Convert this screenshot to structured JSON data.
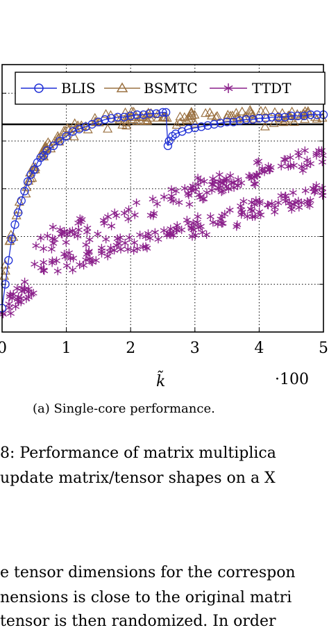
{
  "chart_data": {
    "type": "scatter",
    "xlabel": "k̃",
    "x_multiplier": "·100",
    "xlim": [
      0,
      5
    ],
    "ylim": [
      0,
      1.12
    ],
    "x_ticks": [
      "0",
      "1",
      "2",
      "3",
      "4",
      "5"
    ],
    "grid": true,
    "legend_position": "top",
    "reference_line_y": 0.87,
    "series": [
      {
        "name": "BLIS",
        "marker": "circle",
        "color": "#1f2fd6",
        "connected": true,
        "x": [
          0.0,
          0.05,
          0.1,
          0.15,
          0.2,
          0.25,
          0.3,
          0.35,
          0.4,
          0.45,
          0.5,
          0.55,
          0.6,
          0.65,
          0.7,
          0.8,
          0.9,
          1.0,
          1.1,
          1.2,
          1.3,
          1.4,
          1.5,
          1.6,
          1.7,
          1.8,
          1.9,
          2.0,
          2.1,
          2.2,
          2.3,
          2.4,
          2.5,
          2.55,
          2.58,
          2.6,
          2.65,
          2.7,
          2.8,
          2.9,
          3.0,
          3.1,
          3.2,
          3.3,
          3.4,
          3.5,
          3.6,
          3.7,
          3.8,
          3.9,
          4.0,
          4.1,
          4.2,
          4.3,
          4.4,
          4.5,
          4.6,
          4.7,
          4.8,
          4.9,
          5.0
        ],
        "y": [
          0.1,
          0.2,
          0.3,
          0.39,
          0.45,
          0.5,
          0.55,
          0.59,
          0.63,
          0.66,
          0.68,
          0.71,
          0.73,
          0.74,
          0.76,
          0.78,
          0.8,
          0.82,
          0.84,
          0.85,
          0.86,
          0.87,
          0.88,
          0.89,
          0.895,
          0.9,
          0.9,
          0.905,
          0.91,
          0.91,
          0.915,
          0.915,
          0.92,
          0.92,
          0.78,
          0.8,
          0.82,
          0.83,
          0.84,
          0.85,
          0.855,
          0.86,
          0.865,
          0.87,
          0.875,
          0.88,
          0.88,
          0.885,
          0.89,
          0.89,
          0.895,
          0.895,
          0.9,
          0.9,
          0.9,
          0.905,
          0.905,
          0.905,
          0.91,
          0.91,
          0.91
        ]
      },
      {
        "name": "BSMTC",
        "marker": "triangle",
        "color": "#9a7040",
        "connected": false,
        "points_estimated": 150
      },
      {
        "name": "TTDT",
        "marker": "star",
        "color": "#8a1f8a",
        "connected": false,
        "points_estimated": 300
      }
    ]
  },
  "caption": "(a) Single-core performance.",
  "body_text": [
    "8:  Performance of matrix multiplica",
    "update matrix/tensor shapes on a X",
    "e tensor dimensions for the correspon",
    "nensions is close to the original matri",
    "tensor is then randomized.  In order"
  ]
}
